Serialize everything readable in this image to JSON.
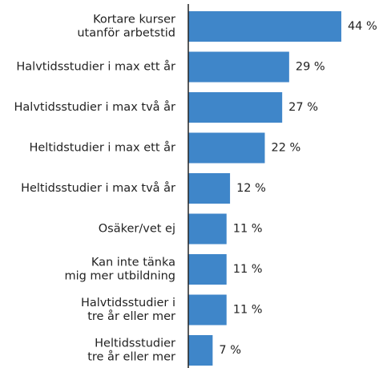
{
  "chart_data": {
    "type": "bar",
    "orientation": "horizontal",
    "categories": [
      "Kortare kurser\nutanför arbetstid",
      "Halvtidsstudier i max ett år",
      "Halvtidsstudier i max två år",
      "Heltidstudier i max ett år",
      "Heltidsstudier i max två år",
      "Osäker/vet ej",
      "Kan inte tänka\nmig mer utbildning",
      "Halvtidsstudier i\ntre år eller mer",
      "Heltidsstudier\ntre år eller mer"
    ],
    "values": [
      44,
      29,
      27,
      22,
      12,
      11,
      11,
      11,
      7
    ],
    "value_labels": [
      "44 %",
      "29 %",
      "27 %",
      "22 %",
      "12 %",
      "11 %",
      "11 %",
      "11 %",
      "7 %"
    ],
    "color": "#3f86c9"
  }
}
